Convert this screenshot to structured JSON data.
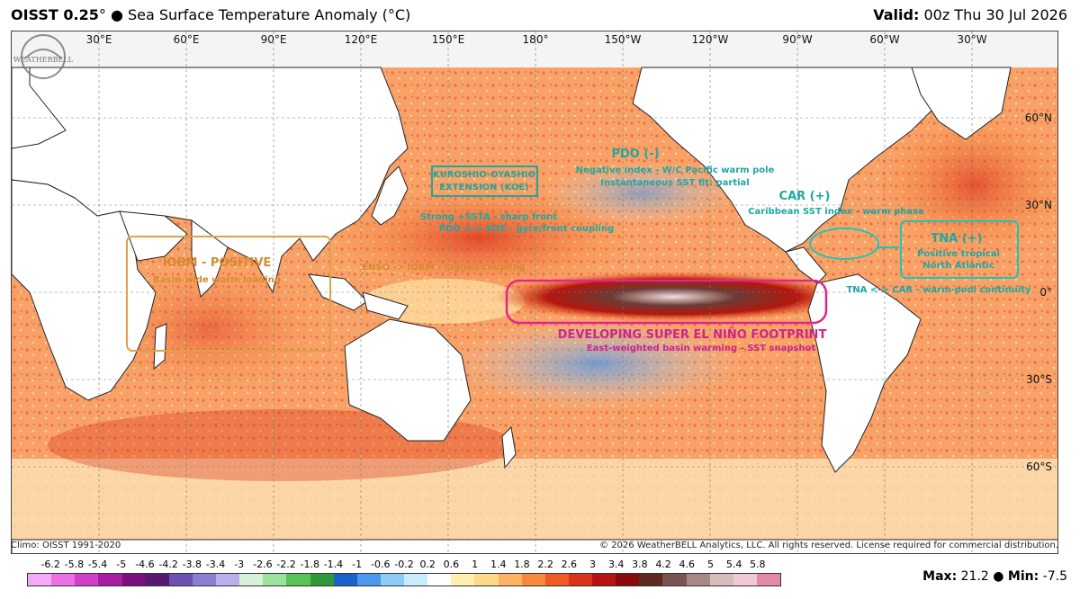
{
  "header": {
    "product": "OISST 0.25",
    "degree": "°",
    "bullet": "●",
    "title": "Sea Surface Temperature Anomaly (°C)",
    "valid_label": "Valid:",
    "valid_value": "00z Thu 30 Jul 2026"
  },
  "longitude_labels": [
    "30°E",
    "60°E",
    "90°E",
    "120°E",
    "150°E",
    "180°",
    "150°W",
    "120°W",
    "90°W",
    "60°W",
    "30°W"
  ],
  "latitude_labels": [
    "60°N",
    "30°N",
    "0°",
    "30°S",
    "60°S"
  ],
  "annotations": {
    "kuroshio_title": "KUROSHIO-OYASHIO",
    "kuroshio_sub": "EXTENSION (KOE)",
    "kuroshio_note1": "Strong +SSTA - sharp front",
    "kuroshio_note2": "PDO <-> KOE - gyre/front coupling",
    "pdo_title": "PDO (-)",
    "pdo_note1": "Negative index - W/C Pacific warm pole",
    "pdo_note2": "Instantaneous SST fit: partial",
    "car_title": "CAR (+)",
    "car_note": "Caribbean SST index - warm phase",
    "tna_title": "TNA (+)",
    "tna_note1": "Positive tropical",
    "tna_note2": "North Atlantic",
    "tna_car": "TNA <-> CAR - warm-pool continuity",
    "iobm_title": "IOBM - POSITIVE",
    "iobm_note": "Basin-wide warm loading",
    "enso_iobm": "ENSO -> IOBM - lagged coupling",
    "elnino_title": "DEVELOPING SUPER EL NIÑO FOOTPRINT",
    "elnino_note": "East-weighted basin warming - SST snapshot"
  },
  "footer": {
    "climo": "Climo: OISST 1991-2020",
    "copyright": "© 2026 WeatherBELL Analytics, LLC. All rights reserved. License required for commercial distribution.",
    "max_label": "Max:",
    "max_value": "21.2",
    "min_label": "Min:",
    "min_value": "-7.5",
    "sep": "●",
    "logo_text": "WEATHERBELL"
  },
  "colorbar": {
    "labels": [
      "-6.2",
      "-5.8",
      "-5.4",
      "-5",
      "-4.6",
      "-4.2",
      "-3.8",
      "-3.4",
      "-3",
      "-2.6",
      "-2.2",
      "-1.8",
      "-1.4",
      "-1",
      "-0.6",
      "-0.2",
      "0.2",
      "0.6",
      "1",
      "1.4",
      "1.8",
      "2.2",
      "2.6",
      "3",
      "3.4",
      "3.8",
      "4.2",
      "4.6",
      "5",
      "5.4",
      "5.8"
    ],
    "colors": [
      "#f6a9f6",
      "#ec6fe6",
      "#d23fcb",
      "#a81ea2",
      "#7b0f7d",
      "#5a1770",
      "#6b51b3",
      "#8c7fd3",
      "#b7b0ea",
      "#d7f0d7",
      "#9be39b",
      "#56c456",
      "#2f9a3a",
      "#1a62c8",
      "#4b98ee",
      "#8ecbf7",
      "#c9ecff",
      "#ffffff",
      "#fff0b0",
      "#ffd98a",
      "#fdb361",
      "#f88a3f",
      "#ee5c24",
      "#d9331a",
      "#b51512",
      "#8a0b0b",
      "#5e2a22",
      "#7a5450",
      "#a88884",
      "#d6bcbb",
      "#f1c9d6",
      "#e48aa5"
    ]
  }
}
